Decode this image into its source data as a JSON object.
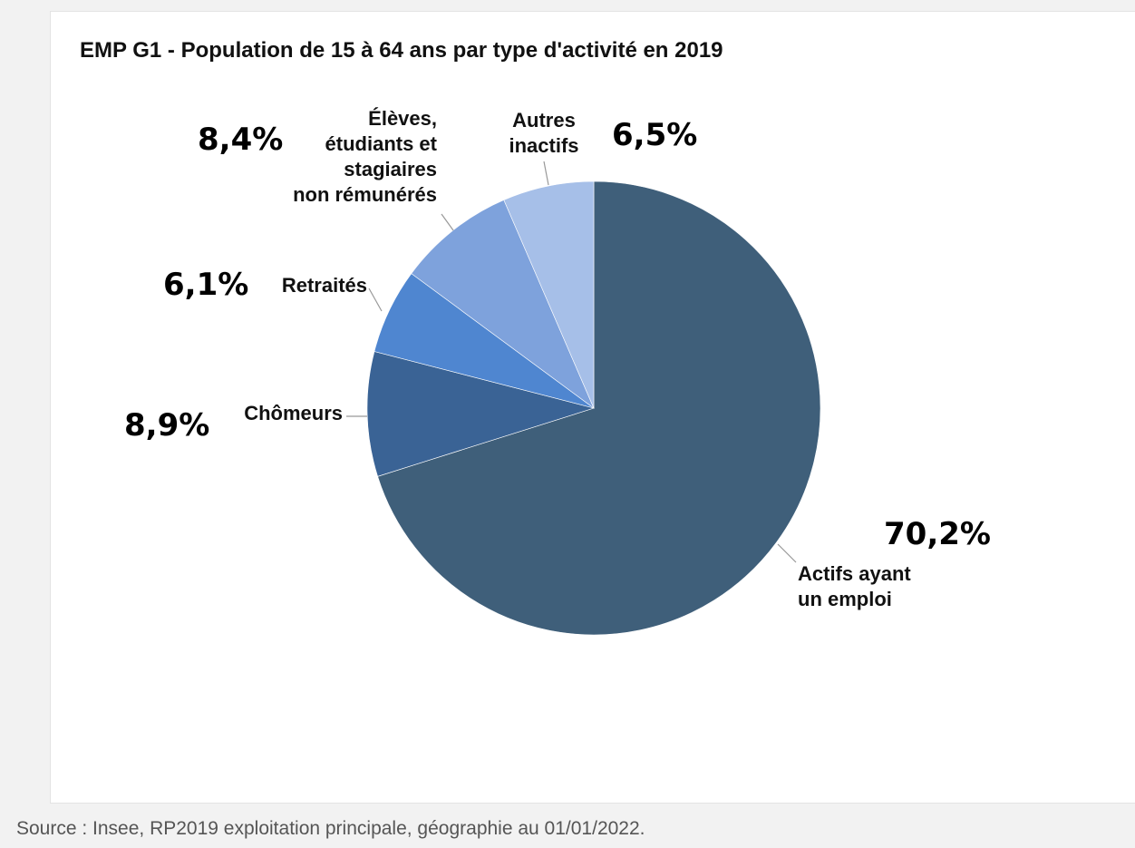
{
  "chart_data": {
    "type": "pie",
    "title": "EMP G1 - Population de 15 à 64 ans par type d'activité en 2019",
    "slices": [
      {
        "label": [
          "Actifs ayant",
          "un emploi"
        ],
        "value": 70.2,
        "value_text": "70,2%",
        "color": "#3f5f7a"
      },
      {
        "label": [
          "Chômeurs"
        ],
        "value": 8.9,
        "value_text": "8,9%",
        "color": "#3a6395"
      },
      {
        "label": [
          "Retraités"
        ],
        "value": 6.1,
        "value_text": "6,1%",
        "color": "#4f86d0"
      },
      {
        "label": [
          "Élèves,",
          "étudiants et",
          "stagiaires",
          "non rémunérés"
        ],
        "value": 8.4,
        "value_text": "8,4%",
        "color": "#7ea2dc"
      },
      {
        "label": [
          "Autres",
          "inactifs"
        ],
        "value": 6.5,
        "value_text": "6,5%",
        "color": "#a6bfe8"
      }
    ],
    "start": "12 o'clock",
    "direction": "clockwise"
  },
  "source": "Source : Insee, RP2019 exploitation principale, géographie au 01/01/2022."
}
